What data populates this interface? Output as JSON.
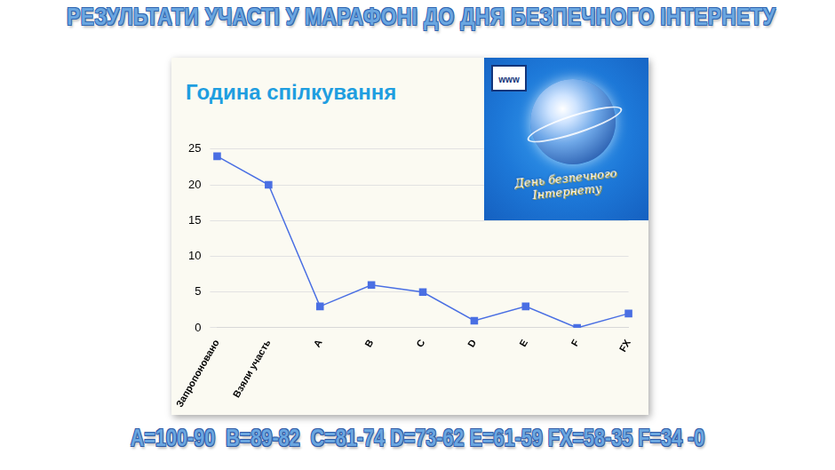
{
  "title": "РЕЗУЛЬТАТИ УЧАСТІ У МАРАФОНІ ДО ДНЯ БЕЗПЕЧНОГО ІНТЕРНЕТУ",
  "chart_data": {
    "type": "line",
    "title": "Година спілкування",
    "categories": [
      "Запропоновано",
      "Взяли участь",
      "A",
      "B",
      "C",
      "D",
      "E",
      "F",
      "FX"
    ],
    "values": [
      24,
      20,
      3,
      6,
      5,
      1,
      3,
      0,
      2
    ],
    "color": "#4a6fe3",
    "marker": "square",
    "ylim": [
      0,
      25
    ],
    "yticks": [
      0,
      5,
      10,
      15,
      20,
      25
    ],
    "grid": true
  },
  "logo": {
    "badge": "www",
    "text": "День безпечного Інтернету"
  },
  "footer": "A=100-90  B=89-82  C=81-74 D=73-62 E=61-59 FX=58-35 F=34 -0"
}
